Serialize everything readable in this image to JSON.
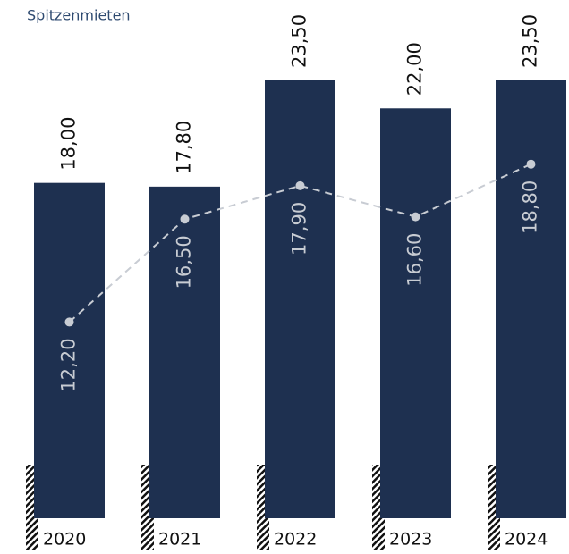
{
  "chart_data": {
    "type": "bar",
    "title": "Spitzenmieten",
    "categories": [
      "2020",
      "2021",
      "2022",
      "2023",
      "2024"
    ],
    "series": [
      {
        "name": "Spitzenmieten",
        "type": "bar",
        "color": "#1e3050",
        "values": [
          18.0,
          17.8,
          23.5,
          22.0,
          23.5
        ],
        "value_labels": [
          "18,00",
          "17,80",
          "23,50",
          "22,00",
          "23,50"
        ]
      },
      {
        "type": "line",
        "axis": "y2",
        "color": "#c8ccd3",
        "values": [
          12.2,
          16.5,
          17.9,
          16.6,
          18.8
        ],
        "value_labels": [
          "12,20",
          "16,50",
          "17,90",
          "16,60",
          "18,80"
        ]
      }
    ],
    "ylim": [
      0,
      23.5
    ],
    "y2lim": [
      4,
      22.3
    ]
  }
}
